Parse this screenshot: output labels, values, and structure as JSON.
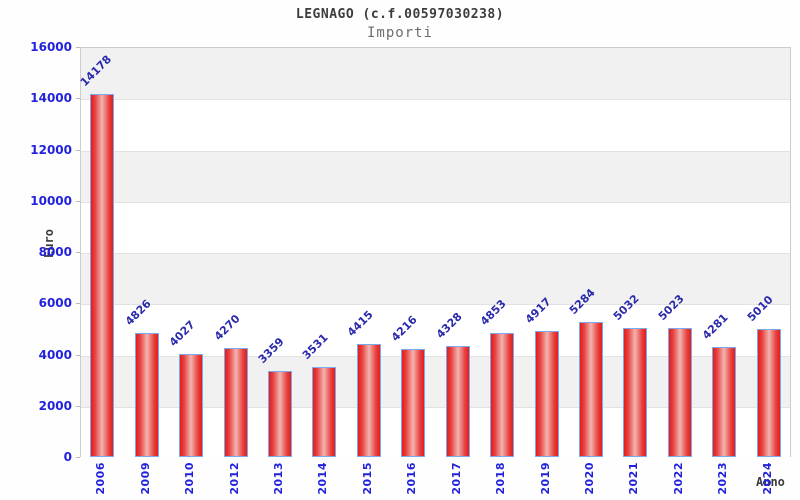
{
  "chart_data": {
    "type": "bar",
    "title": "LEGNAGO (c.f.00597030238)",
    "subtitle": "Importi",
    "xlabel": "Anno",
    "ylabel": "Euro",
    "categories": [
      "2006",
      "2009",
      "2010",
      "2012",
      "2013",
      "2014",
      "2015",
      "2016",
      "2017",
      "2018",
      "2019",
      "2020",
      "2021",
      "2022",
      "2023",
      "2024"
    ],
    "values": [
      14178,
      4826,
      4027,
      4270,
      3359,
      3531,
      4415,
      4216,
      4328,
      4853,
      4917,
      5284,
      5032,
      5023,
      4281,
      5010
    ],
    "ylim": [
      0,
      16000
    ],
    "ytick_step": 2000,
    "yticks": [
      0,
      2000,
      4000,
      6000,
      8000,
      10000,
      12000,
      14000,
      16000
    ],
    "grid": "horizontal-bands-alternating",
    "legend_position": "none",
    "colors": {
      "bar_edge": "#7aaaee",
      "bar_main": "#e41d1d",
      "bar_highlight": "#f2b4b0",
      "value_label": "#2a2aad",
      "tick_label": "#2222dd",
      "axis_title": "#3c3c3c",
      "title": "#3c3c3c",
      "subtitle": "#6e6e6e",
      "band_gray": "#f1f1f1",
      "band_white": "#ffffff",
      "plot_border": "#cccccc"
    }
  }
}
